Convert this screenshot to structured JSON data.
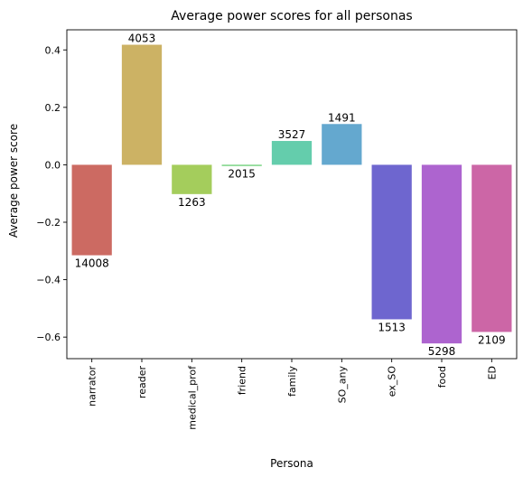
{
  "chart_data": {
    "type": "bar",
    "title": "Average power scores for all personas",
    "xlabel": "Persona",
    "ylabel": "Average power score",
    "categories": [
      "narrator",
      "reader",
      "medical_prof",
      "friend",
      "family",
      "SO_any",
      "ex_SO",
      "food",
      "ED"
    ],
    "values": [
      -0.315,
      0.418,
      -0.102,
      -0.004,
      0.083,
      0.142,
      -0.538,
      -0.622,
      -0.582
    ],
    "data_labels": [
      "14008",
      "4053",
      "1263",
      "2015",
      "3527",
      "1491",
      "1513",
      "5298",
      "2109"
    ],
    "colors": [
      "#cc6a62",
      "#ccb264",
      "#a4cd5c",
      "#64cd70",
      "#64cdac",
      "#64a8cf",
      "#6e66cf",
      "#ad64cf",
      "#cc66a6"
    ],
    "ylim": [
      -0.675,
      0.47
    ],
    "yticks": [
      -0.6,
      -0.4,
      -0.2,
      0.0,
      0.2,
      0.4
    ],
    "ytick_labels": [
      "−0.6",
      "−0.4",
      "−0.2",
      "0.0",
      "0.2",
      "0.4"
    ],
    "grid": false,
    "legend": "none"
  }
}
